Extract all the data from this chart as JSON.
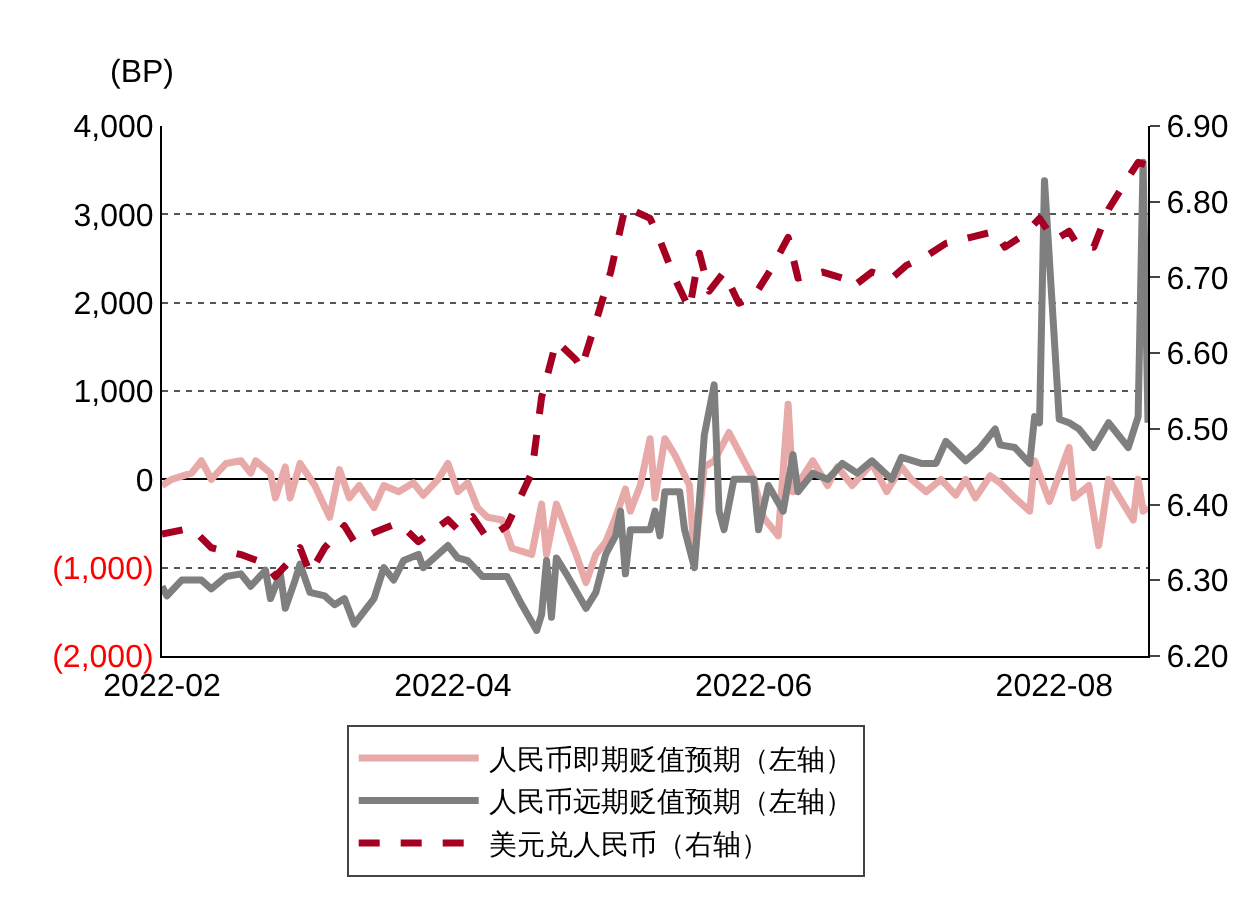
{
  "chart_data": {
    "type": "line",
    "ylabel": "(BP)",
    "legend": "bottom",
    "grid": "y",
    "marker": "none",
    "xlim": [
      "2022-02-01",
      "2022-08-20"
    ],
    "xticks": [
      {
        "value": "2022-02-01",
        "label": "2022-02"
      },
      {
        "value": "2022-04-01",
        "label": "2022-04"
      },
      {
        "value": "2022-06-01",
        "label": "2022-06"
      },
      {
        "value": "2022-08-01",
        "label": "2022-08"
      }
    ],
    "ylim": [
      -2000,
      4000
    ],
    "yticks": [
      {
        "value": -2000,
        "label": "(2,000)"
      },
      {
        "value": -1000,
        "label": "(1,000)"
      },
      0,
      {
        "value": 1000,
        "label": "1,000"
      },
      {
        "value": 2000,
        "label": "2,000"
      },
      {
        "value": 3000,
        "label": "3,000"
      },
      {
        "value": 4000,
        "label": "4,000"
      }
    ],
    "y2lim": [
      6.2,
      6.9
    ],
    "y2ticks": [
      {
        "value": 6.2,
        "label": "6.20"
      },
      {
        "value": 6.3,
        "label": "6.30"
      },
      {
        "value": 6.4,
        "label": "6.40"
      },
      {
        "value": 6.5,
        "label": "6.50"
      },
      {
        "value": 6.6,
        "label": "6.60"
      },
      {
        "value": 6.7,
        "label": "6.70"
      },
      {
        "value": 6.8,
        "label": "6.80"
      },
      {
        "value": 6.9,
        "label": "6.90"
      }
    ],
    "series": [
      {
        "name": "人民币即期贬值预期（左轴）",
        "color": "#e8a9a9",
        "line_style": "solid",
        "x": [
          "2022-02-01",
          "2022-02-03",
          "2022-02-07",
          "2022-02-09",
          "2022-02-11",
          "2022-02-14",
          "2022-02-17",
          "2022-02-19",
          "2022-02-20",
          "2022-02-23",
          "2022-02-24",
          "2022-02-26",
          "2022-02-27",
          "2022-03-01",
          "2022-03-04",
          "2022-03-07",
          "2022-03-09",
          "2022-03-11",
          "2022-03-13",
          "2022-03-16",
          "2022-03-18",
          "2022-03-21",
          "2022-03-24",
          "2022-03-26",
          "2022-03-29",
          "2022-03-31",
          "2022-04-02",
          "2022-04-04",
          "2022-04-06",
          "2022-04-08",
          "2022-04-11",
          "2022-04-13",
          "2022-04-17",
          "2022-04-19",
          "2022-04-20",
          "2022-04-22",
          "2022-04-26",
          "2022-04-28",
          "2022-04-30",
          "2022-05-02",
          "2022-05-04",
          "2022-05-06",
          "2022-05-07",
          "2022-05-09",
          "2022-05-11",
          "2022-05-12",
          "2022-05-14",
          "2022-05-16",
          "2022-05-19",
          "2022-05-20",
          "2022-05-22",
          "2022-05-24",
          "2022-05-27",
          "2022-06-01",
          "2022-06-03",
          "2022-06-06",
          "2022-06-08",
          "2022-06-09",
          "2022-06-13",
          "2022-06-16",
          "2022-06-18",
          "2022-06-21",
          "2022-06-25",
          "2022-06-28",
          "2022-07-01",
          "2022-07-03",
          "2022-07-06",
          "2022-07-09",
          "2022-07-12",
          "2022-07-14",
          "2022-07-16",
          "2022-07-19",
          "2022-07-21",
          "2022-07-24",
          "2022-07-27",
          "2022-07-28",
          "2022-07-31",
          "2022-08-04",
          "2022-08-05",
          "2022-08-08",
          "2022-08-10",
          "2022-08-12",
          "2022-08-15",
          "2022-08-17",
          "2022-08-18",
          "2022-08-19",
          "2022-08-20"
        ],
        "values": [
          -70,
          0,
          70,
          210,
          0,
          180,
          210,
          70,
          210,
          70,
          -210,
          140,
          -210,
          180,
          -70,
          -430,
          110,
          -210,
          -70,
          -320,
          -70,
          -140,
          -40,
          -180,
          0,
          180,
          -140,
          -40,
          -320,
          -430,
          -460,
          -780,
          -850,
          -280,
          -850,
          -280,
          -850,
          -1170,
          -850,
          -710,
          -430,
          -110,
          -360,
          -70,
          460,
          -210,
          460,
          280,
          -70,
          -920,
          140,
          210,
          530,
          0,
          -430,
          -640,
          850,
          -140,
          210,
          -70,
          140,
          -70,
          180,
          -140,
          140,
          0,
          -140,
          0,
          -180,
          0,
          -210,
          40,
          -40,
          -210,
          -360,
          210,
          -250,
          360,
          -210,
          -70,
          -750,
          0,
          -280,
          -460,
          0,
          -360,
          -320
        ]
      },
      {
        "name": "人民币远期贬值预期（左轴）",
        "color": "#7f7f7f",
        "line_style": "solid",
        "x": [
          "2022-02-01",
          "2022-02-02",
          "2022-02-05",
          "2022-02-09",
          "2022-02-11",
          "2022-02-14",
          "2022-02-17",
          "2022-02-19",
          "2022-02-22",
          "2022-02-23",
          "2022-02-25",
          "2022-02-26",
          "2022-02-28",
          "2022-03-01",
          "2022-03-03",
          "2022-03-06",
          "2022-03-08",
          "2022-03-10",
          "2022-03-12",
          "2022-03-16",
          "2022-03-18",
          "2022-03-20",
          "2022-03-22",
          "2022-03-25",
          "2022-03-26",
          "2022-03-29",
          "2022-03-31",
          "2022-04-02",
          "2022-04-04",
          "2022-04-07",
          "2022-04-12",
          "2022-04-15",
          "2022-04-18",
          "2022-04-19",
          "2022-04-20",
          "2022-04-21",
          "2022-04-22",
          "2022-04-24",
          "2022-04-28",
          "2022-04-30",
          "2022-05-02",
          "2022-05-04",
          "2022-05-05",
          "2022-05-06",
          "2022-05-07",
          "2022-05-11",
          "2022-05-12",
          "2022-05-13",
          "2022-05-14",
          "2022-05-17",
          "2022-05-18",
          "2022-05-20",
          "2022-05-22",
          "2022-05-24",
          "2022-05-25",
          "2022-05-26",
          "2022-05-28",
          "2022-06-01",
          "2022-06-02",
          "2022-06-04",
          "2022-06-07",
          "2022-06-09",
          "2022-06-10",
          "2022-06-13",
          "2022-06-16",
          "2022-06-19",
          "2022-06-22",
          "2022-06-25",
          "2022-06-29",
          "2022-07-01",
          "2022-07-05",
          "2022-07-08",
          "2022-07-10",
          "2022-07-14",
          "2022-07-17",
          "2022-07-20",
          "2022-07-21",
          "2022-07-24",
          "2022-07-27",
          "2022-07-28",
          "2022-07-29",
          "2022-07-30",
          "2022-07-31",
          "2022-08-02",
          "2022-08-04",
          "2022-08-06",
          "2022-08-09",
          "2022-08-12",
          "2022-08-16",
          "2022-08-18",
          "2022-08-19",
          "2022-08-20"
        ],
        "values": [
          -1210,
          -1320,
          -1140,
          -1140,
          -1240,
          -1100,
          -1070,
          -1210,
          -1030,
          -1350,
          -1070,
          -1460,
          -1140,
          -960,
          -1280,
          -1320,
          -1420,
          -1350,
          -1640,
          -1350,
          -1000,
          -1140,
          -920,
          -850,
          -1000,
          -850,
          -750,
          -890,
          -920,
          -1100,
          -1100,
          -1420,
          -1710,
          -1530,
          -920,
          -1560,
          -890,
          -1070,
          -1460,
          -1280,
          -850,
          -640,
          -360,
          -1070,
          -570,
          -570,
          -360,
          -640,
          -140,
          -140,
          -570,
          -1000,
          500,
          1070,
          -360,
          -570,
          0,
          0,
          -570,
          -70,
          -360,
          280,
          -140,
          70,
          0,
          180,
          70,
          210,
          0,
          250,
          180,
          180,
          430,
          210,
          360,
          570,
          390,
          360,
          180,
          710,
          640,
          3380,
          2490,
          680,
          640,
          570,
          360,
          640,
          360,
          710,
          3590,
          640
        ]
      },
      {
        "name": "美元兑人民币（右轴）",
        "color": "#a50021",
        "line_style": "dashed",
        "axis": "y2",
        "x": [
          "2022-02-01",
          "2022-02-07",
          "2022-02-11",
          "2022-02-17",
          "2022-02-22",
          "2022-02-24",
          "2022-02-27",
          "2022-03-01",
          "2022-03-03",
          "2022-03-06",
          "2022-03-10",
          "2022-03-12",
          "2022-03-16",
          "2022-03-21",
          "2022-03-25",
          "2022-03-31",
          "2022-04-02",
          "2022-04-05",
          "2022-04-08",
          "2022-04-12",
          "2022-04-17",
          "2022-04-19",
          "2022-04-22",
          "2022-04-26",
          "2022-04-27",
          "2022-04-30",
          "2022-05-03",
          "2022-05-06",
          "2022-05-07",
          "2022-05-11",
          "2022-05-13",
          "2022-05-16",
          "2022-05-19",
          "2022-05-21",
          "2022-05-23",
          "2022-05-26",
          "2022-05-29",
          "2022-06-01",
          "2022-06-05",
          "2022-06-08",
          "2022-06-10",
          "2022-06-15",
          "2022-06-19",
          "2022-06-21",
          "2022-06-25",
          "2022-06-29",
          "2022-07-02",
          "2022-07-06",
          "2022-07-10",
          "2022-07-15",
          "2022-07-20",
          "2022-07-22",
          "2022-07-26",
          "2022-07-29",
          "2022-08-01",
          "2022-08-04",
          "2022-08-06",
          "2022-08-09",
          "2022-08-12",
          "2022-08-16",
          "2022-08-18",
          "2022-08-20"
        ],
        "values": [
          6.361,
          6.369,
          6.343,
          6.334,
          6.322,
          6.305,
          6.326,
          6.343,
          6.309,
          6.343,
          6.372,
          6.351,
          6.363,
          6.376,
          6.351,
          6.38,
          6.367,
          6.384,
          6.355,
          6.372,
          6.442,
          6.542,
          6.616,
          6.591,
          6.579,
          6.641,
          6.707,
          6.794,
          6.79,
          6.778,
          6.749,
          6.699,
          6.658,
          6.732,
          6.682,
          6.707,
          6.666,
          6.674,
          6.716,
          6.753,
          6.699,
          6.707,
          6.699,
          6.687,
          6.707,
          6.699,
          6.716,
          6.728,
          6.745,
          6.753,
          6.761,
          6.74,
          6.757,
          6.778,
          6.749,
          6.761,
          6.74,
          6.74,
          6.79,
          6.832,
          6.852,
          6.848
        ]
      }
    ]
  }
}
